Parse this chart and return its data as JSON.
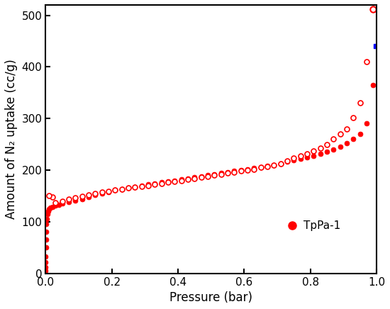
{
  "title": "",
  "xlabel": "Pressure (bar)",
  "ylabel": "Amount of N₂ uptake (cc/g)",
  "xlim": [
    0,
    1.0
  ],
  "ylim": [
    0,
    520
  ],
  "yticks": [
    0,
    100,
    200,
    300,
    400,
    500
  ],
  "xticks": [
    0.0,
    0.2,
    0.4,
    0.6,
    0.8,
    1.0
  ],
  "color": "#FF0000",
  "blue_color": "#0000FF",
  "legend_label": "TpPa-1",
  "adsorption_x": [
    1e-06,
    1e-05,
    5e-05,
    0.0001,
    0.0003,
    0.0005,
    0.001,
    0.002,
    0.003,
    0.005,
    0.007,
    0.01,
    0.015,
    0.02,
    0.03,
    0.04,
    0.05,
    0.07,
    0.09,
    0.11,
    0.13,
    0.15,
    0.17,
    0.19,
    0.21,
    0.23,
    0.25,
    0.27,
    0.29,
    0.31,
    0.33,
    0.35,
    0.37,
    0.39,
    0.41,
    0.43,
    0.45,
    0.47,
    0.49,
    0.51,
    0.53,
    0.55,
    0.57,
    0.59,
    0.61,
    0.63,
    0.65,
    0.67,
    0.69,
    0.71,
    0.73,
    0.75,
    0.77,
    0.79,
    0.81,
    0.83,
    0.85,
    0.87,
    0.89,
    0.91,
    0.93,
    0.95,
    0.97,
    0.99
  ],
  "adsorption_y": [
    5,
    12,
    22,
    33,
    50,
    65,
    80,
    95,
    105,
    115,
    120,
    124,
    127,
    129,
    131,
    133,
    135,
    138,
    141,
    144,
    148,
    152,
    155,
    158,
    161,
    163,
    165,
    167,
    170,
    172,
    174,
    176,
    178,
    180,
    182,
    184,
    186,
    188,
    190,
    192,
    194,
    196,
    198,
    200,
    202,
    204,
    206,
    208,
    210,
    213,
    216,
    219,
    222,
    225,
    228,
    232,
    236,
    240,
    245,
    252,
    260,
    270,
    290,
    365
  ],
  "desorption_x": [
    0.99,
    0.97,
    0.95,
    0.93,
    0.91,
    0.89,
    0.87,
    0.85,
    0.83,
    0.81,
    0.79,
    0.77,
    0.75,
    0.73,
    0.71,
    0.69,
    0.67,
    0.65,
    0.63,
    0.61,
    0.59,
    0.57,
    0.55,
    0.53,
    0.51,
    0.49,
    0.47,
    0.45,
    0.43,
    0.41,
    0.39,
    0.37,
    0.35,
    0.33,
    0.31,
    0.29,
    0.27,
    0.25,
    0.23,
    0.21,
    0.19,
    0.17,
    0.15,
    0.13,
    0.11,
    0.09,
    0.07,
    0.05,
    0.03,
    0.02,
    0.01
  ],
  "desorption_y": [
    512,
    410,
    330,
    302,
    280,
    270,
    260,
    250,
    242,
    237,
    232,
    227,
    223,
    218,
    213,
    210,
    207,
    205,
    202,
    200,
    198,
    196,
    194,
    192,
    190,
    188,
    186,
    184,
    182,
    180,
    178,
    176,
    174,
    172,
    170,
    168,
    167,
    165,
    163,
    161,
    159,
    157,
    155,
    152,
    149,
    146,
    143,
    140,
    137,
    148,
    150
  ]
}
